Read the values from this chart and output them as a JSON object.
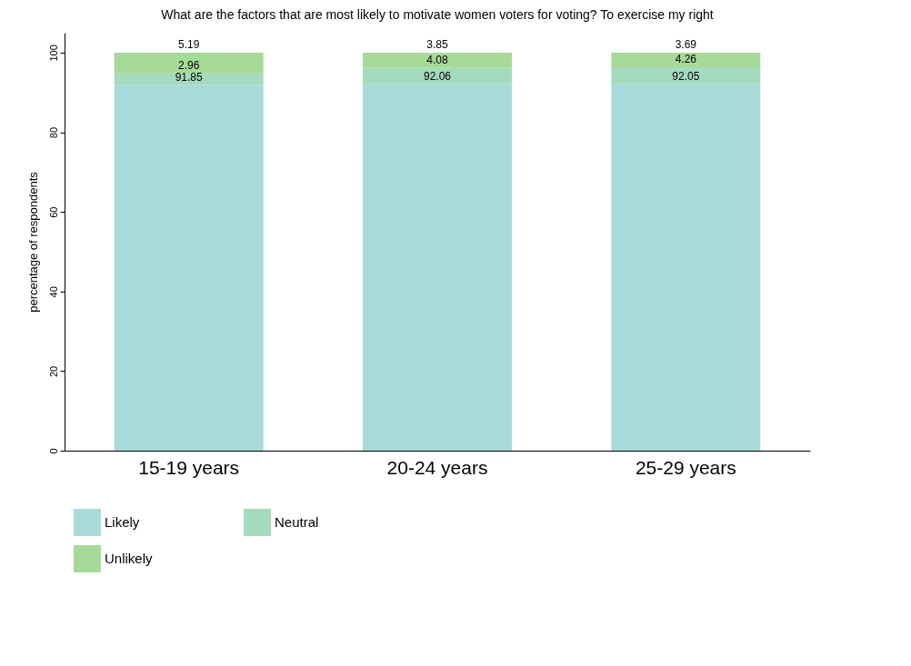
{
  "chart_data": {
    "type": "bar",
    "title": "What are the factors that are most likely to motivate women voters for voting? To exercise my right",
    "ylabel": "percentage of respondents",
    "categories": [
      "15-19 years",
      "20-24 years",
      "25-29 years"
    ],
    "series": [
      {
        "name": "Likely",
        "color": "#a8dada",
        "values": [
          91.85,
          92.06,
          92.05
        ]
      },
      {
        "name": "Neutral",
        "color": "#a4dbbf",
        "values": [
          2.96,
          4.08,
          4.26
        ]
      },
      {
        "name": "Unlikely",
        "color": "#a6da98",
        "values": [
          5.19,
          3.85,
          3.69
        ]
      }
    ],
    "stacked": true,
    "data_labels": true,
    "ylim": [
      0,
      105
    ],
    "yticks": [
      0,
      20,
      40,
      60,
      80,
      100
    ],
    "grid": false,
    "legend": "bottom"
  }
}
